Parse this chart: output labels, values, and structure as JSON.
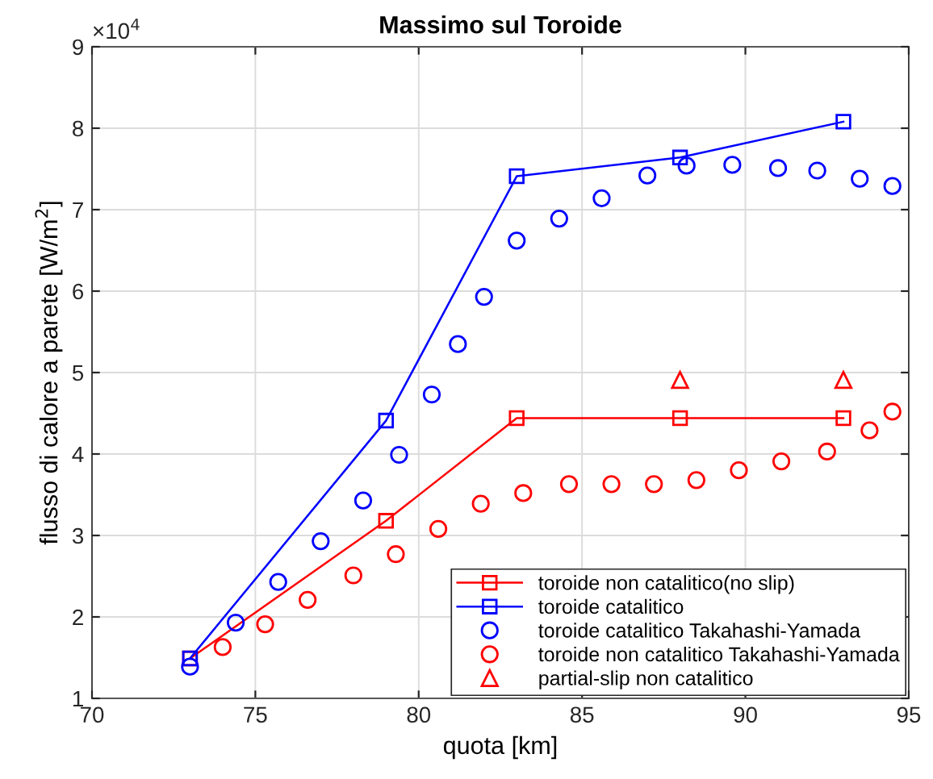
{
  "chart_data": {
    "type": "line",
    "title": "Massimo sul Toroide",
    "xlabel": "quota [km]",
    "ylabel": "flusso di calore a parete [W/m$^{2}$]",
    "annotations": [
      "×10$^{4}$"
    ],
    "xlim": [
      70,
      95
    ],
    "xticks": [
      70,
      75,
      80,
      85,
      90,
      95
    ],
    "ylim": [
      1,
      9
    ],
    "yticks": [
      1,
      2,
      3,
      4,
      5,
      6,
      7,
      8,
      9
    ],
    "grid": true,
    "legend": "bottom right",
    "series": [
      {
        "name": "toroide non catalitico(no slip)",
        "marker": "square",
        "line_style": "solid",
        "color": "#ff0000",
        "x": [
          73,
          79,
          83,
          88,
          93
        ],
        "values": [
          1.49,
          3.18,
          4.44,
          4.44,
          4.44
        ]
      },
      {
        "name": "toroide catalitico",
        "marker": "square",
        "line_style": "solid",
        "color": "#0000ff",
        "x": [
          73,
          79,
          83,
          88,
          93
        ],
        "values": [
          1.49,
          4.41,
          7.41,
          7.64,
          8.08
        ]
      },
      {
        "name": "toroide catalitico Takahashi-Yamada",
        "type": "scatter",
        "marker": "circle",
        "color": "#0000ff",
        "x": [
          73.0,
          74.4,
          75.7,
          77.0,
          78.3,
          79.4,
          80.4,
          81.2,
          82.0,
          83.0,
          84.3,
          85.6,
          87.0,
          88.2,
          89.6,
          91.0,
          92.2,
          93.5,
          94.5
        ],
        "values": [
          1.39,
          1.93,
          2.43,
          2.93,
          3.43,
          3.99,
          4.73,
          5.35,
          5.93,
          6.62,
          6.89,
          7.14,
          7.42,
          7.54,
          7.55,
          7.51,
          7.48,
          7.38,
          7.29
        ]
      },
      {
        "name": "toroide non catalitico Takahashi-Yamada",
        "type": "scatter",
        "marker": "circle",
        "color": "#ff0000",
        "x": [
          74.0,
          75.3,
          76.6,
          78.0,
          79.3,
          80.6,
          81.9,
          83.2,
          84.6,
          85.9,
          87.2,
          88.5,
          89.8,
          91.1,
          92.5,
          93.8,
          94.5
        ],
        "values": [
          1.63,
          1.91,
          2.21,
          2.51,
          2.77,
          3.08,
          3.39,
          3.52,
          3.63,
          3.63,
          3.63,
          3.68,
          3.8,
          3.91,
          4.03,
          4.29,
          4.52
        ]
      },
      {
        "name": "partial-slip non catalitico",
        "type": "scatter",
        "marker": "triangle",
        "color": "#ff0000",
        "x": [
          88,
          93
        ],
        "values": [
          4.91,
          4.91
        ]
      }
    ]
  }
}
